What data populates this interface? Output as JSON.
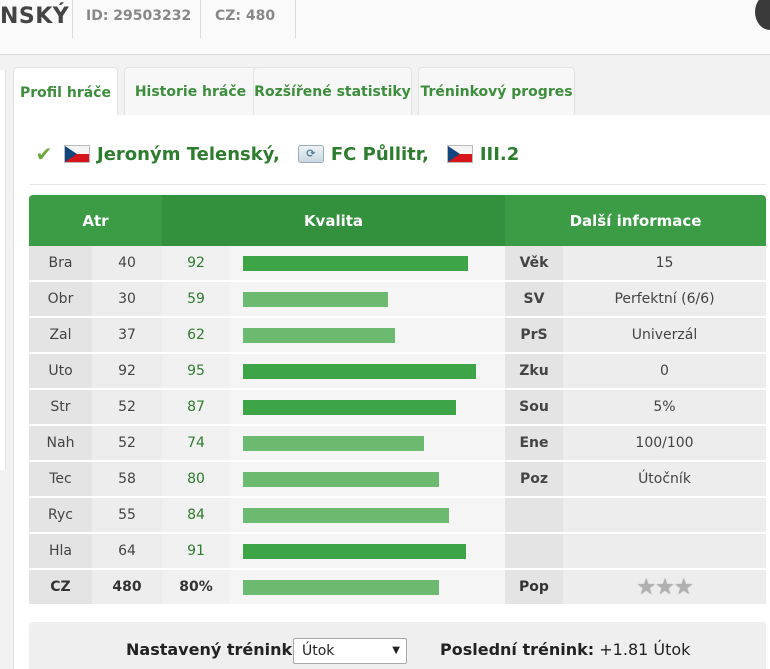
{
  "header": {
    "player_name": "NSKÝ",
    "id_text": "ID: 29503232",
    "cz_text": "CZ: 480"
  },
  "tabs": [
    {
      "label": "Profil hráče",
      "active": true
    },
    {
      "label": "Historie hráče",
      "active": false
    },
    {
      "label": "Rozšířené statistiky",
      "active": false
    },
    {
      "label": "Tréninkový progres",
      "active": false
    }
  ],
  "player": {
    "name": "Jeroným Telenský,",
    "club": "FC Půllitr,",
    "league": "III.2",
    "nationality_flag": "czech-flag",
    "status_icon": "checkmark-icon"
  },
  "table": {
    "headers": {
      "attr": "Atr",
      "quality": "Kvalita",
      "info": "Další informace"
    },
    "rows": [
      {
        "attr": "Bra",
        "value": "40",
        "quality": "92",
        "bar": 92,
        "info_key": "Věk",
        "info_val": "15"
      },
      {
        "attr": "Obr",
        "value": "30",
        "quality": "59",
        "bar": 59,
        "info_key": "SV",
        "info_val": "Perfektní (6/6)"
      },
      {
        "attr": "Zal",
        "value": "37",
        "quality": "62",
        "bar": 62,
        "info_key": "PrS",
        "info_val": "Univerzál"
      },
      {
        "attr": "Uto",
        "value": "92",
        "quality": "95",
        "bar": 95,
        "info_key": "Zku",
        "info_val": "0"
      },
      {
        "attr": "Str",
        "value": "52",
        "quality": "87",
        "bar": 87,
        "info_key": "Sou",
        "info_val": "5%"
      },
      {
        "attr": "Nah",
        "value": "52",
        "quality": "74",
        "bar": 74,
        "info_key": "Ene",
        "info_val": "100/100"
      },
      {
        "attr": "Tec",
        "value": "58",
        "quality": "80",
        "bar": 80,
        "info_key": "Poz",
        "info_val": "Útočník"
      },
      {
        "attr": "Ryc",
        "value": "55",
        "quality": "84",
        "bar": 84,
        "info_key": "",
        "info_val": ""
      },
      {
        "attr": "Hla",
        "value": "64",
        "quality": "91",
        "bar": 91,
        "info_key": "",
        "info_val": ""
      }
    ],
    "summary": {
      "attr": "CZ",
      "value": "480",
      "quality": "80%",
      "bar": 80,
      "info_key": "Pop",
      "stars_icon": "star-rating-icon",
      "stars": "★★★"
    }
  },
  "training": {
    "set_label": "Nastavený trénink:",
    "selected": "Útok",
    "last_label": "Poslední trénink:",
    "last_value": "+1.81 Útok"
  },
  "colors": {
    "accent": "#3b9c45",
    "bar": "#3da547",
    "bar_light": "#6cba6f",
    "link": "#2e7d2e"
  }
}
